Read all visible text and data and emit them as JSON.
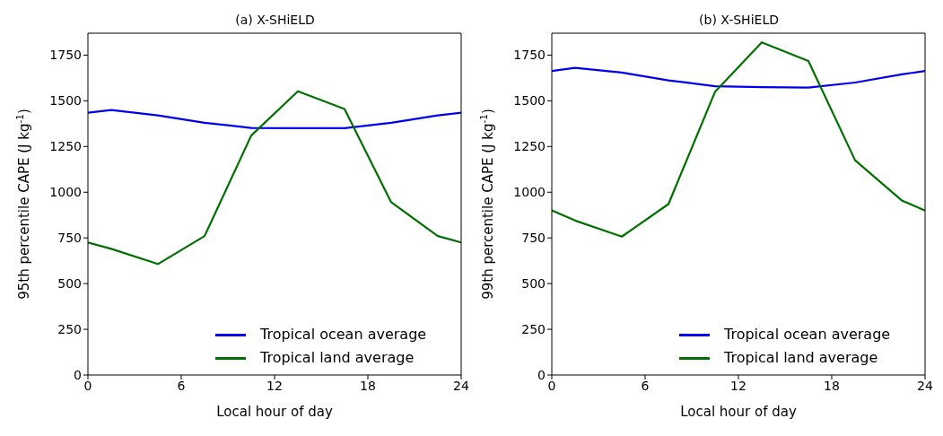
{
  "chart_data": [
    {
      "type": "line",
      "title": "(a) X-SHiELD",
      "xlabel": "Local hour of day",
      "ylabel": "95th percentile CAPE (J kg$^{-1}$)",
      "x": [
        0,
        1.5,
        4.5,
        7.5,
        10.5,
        13.5,
        16.5,
        19.5,
        22.5,
        24
      ],
      "xlim": [
        0,
        24
      ],
      "xticks": [
        0,
        6,
        12,
        18,
        24
      ],
      "ylim": [
        0,
        1870
      ],
      "yticks": [
        0,
        250,
        500,
        750,
        1000,
        1250,
        1500,
        1750
      ],
      "grid": false,
      "legend": "bottom right",
      "marker": "none",
      "line_style": "solid",
      "series": [
        {
          "name": "Tropical ocean average",
          "color": "#0000ee",
          "values": [
            1435,
            1450,
            1420,
            1380,
            1352,
            1350,
            1350,
            1380,
            1420,
            1435
          ]
        },
        {
          "name": "Tropical land average",
          "color": "#007000",
          "values": [
            725,
            690,
            607,
            760,
            1310,
            1552,
            1455,
            945,
            760,
            725
          ]
        }
      ]
    },
    {
      "type": "line",
      "title": "(b) X-SHiELD",
      "xlabel": "Local hour of day",
      "ylabel": "99th percentile CAPE (J kg$^{-1}$)",
      "x": [
        0,
        1.5,
        4.5,
        7.5,
        10.5,
        13.5,
        16.5,
        19.5,
        22.5,
        24
      ],
      "xlim": [
        0,
        24
      ],
      "xticks": [
        0,
        6,
        12,
        18,
        24
      ],
      "ylim": [
        0,
        1870
      ],
      "yticks": [
        0,
        250,
        500,
        750,
        1000,
        1250,
        1500,
        1750
      ],
      "grid": false,
      "legend": "bottom right",
      "marker": "none",
      "line_style": "solid",
      "series": [
        {
          "name": "Tropical ocean average",
          "color": "#0000ee",
          "values": [
            1663,
            1680,
            1655,
            1612,
            1580,
            1575,
            1572,
            1600,
            1645,
            1663
          ]
        },
        {
          "name": "Tropical land average",
          "color": "#007000",
          "values": [
            900,
            845,
            757,
            935,
            1550,
            1820,
            1718,
            1175,
            955,
            900
          ]
        }
      ]
    }
  ]
}
